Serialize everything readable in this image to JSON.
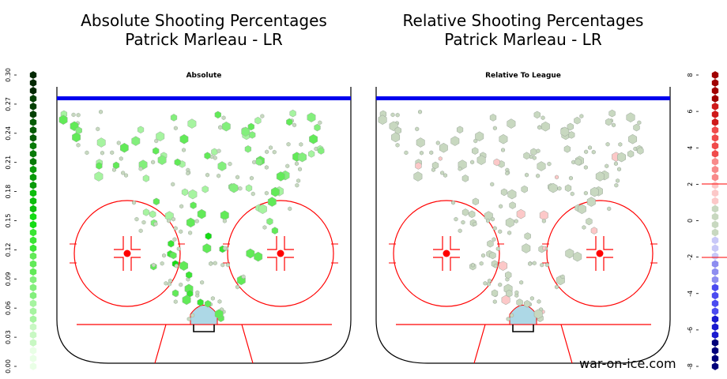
{
  "left_title": {
    "line1": "Absolute Shooting Percentages",
    "line2": "Patrick Marleau - LR"
  },
  "right_title": {
    "line1": "Relative Shooting Percentages",
    "line2": "Patrick Marleau - LR"
  },
  "credit": "war-on-ice.com",
  "colors": {
    "blue_line": "#0000ee",
    "red_lines": "#ff0000",
    "crease": "#add8e6",
    "neutral_hex": "#c8d8c0",
    "pct_scale": [
      "#e9ffe6",
      "#c8f8c3",
      "#a6f4a0",
      "#83ef7c",
      "#62ea58",
      "#3ae534",
      "#14dc14",
      "#0cbd0c",
      "#099a09",
      "#077a07",
      "#055c05",
      "#034003",
      "#022802"
    ],
    "rel_scale": [
      "#00007a",
      "#1a1acf",
      "#4b4bf0",
      "#8d8df0",
      "#c8c8f8",
      "#c8d8c0",
      "#fcc8c8",
      "#f88a8a",
      "#f04b4b",
      "#cf1a1a",
      "#a00000"
    ]
  },
  "chart_data": [
    {
      "type": "heatmap",
      "title": "Absolute",
      "colorbar_ticks": [
        "0.00",
        "0.03",
        "0.06",
        "0.09",
        "0.12",
        "0.15",
        "0.18",
        "0.21",
        "0.24",
        "0.27",
        "0.30"
      ],
      "colorbar_range": [
        0,
        0.3
      ]
    },
    {
      "type": "heatmap",
      "title": "Relative To League",
      "colorbar_ticks": [
        "-8",
        "-6",
        "-4",
        "-2",
        "0",
        "2",
        "4",
        "6",
        "8"
      ],
      "colorbar_range": [
        -8,
        8
      ]
    }
  ]
}
